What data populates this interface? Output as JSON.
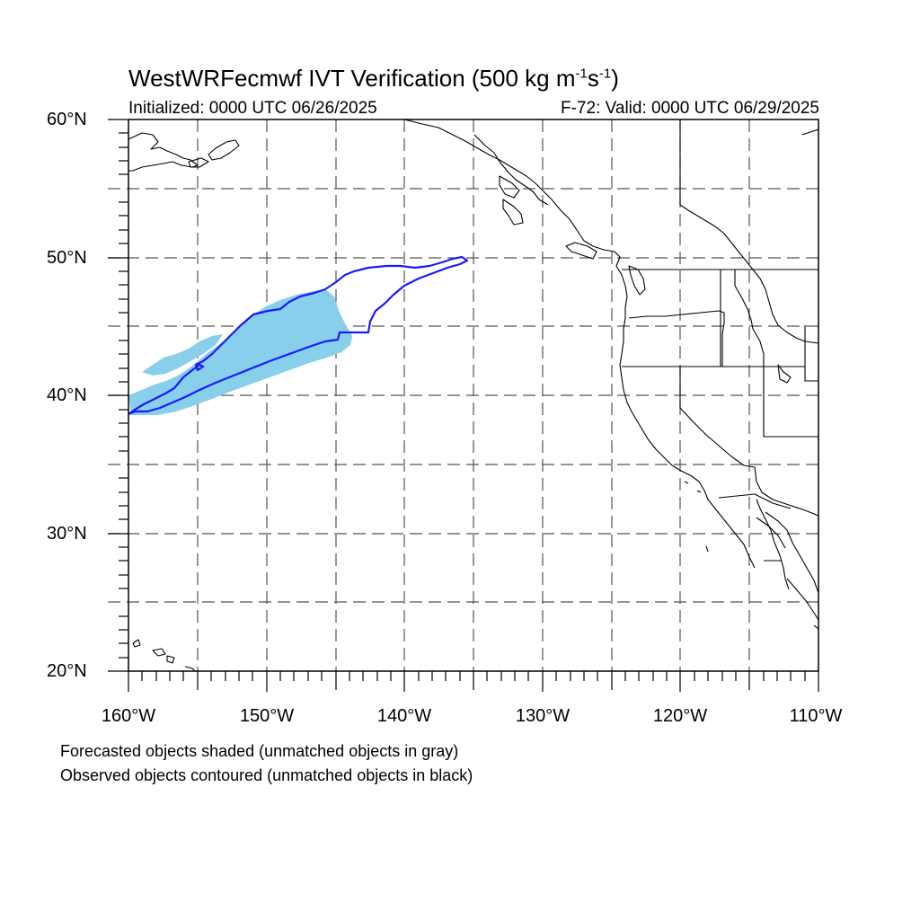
{
  "title": {
    "main": "WestWRFecmwf IVT Verification (500 kg m",
    "exp1": "-1",
    "mid": "s",
    "exp2": "-1",
    "end": ")"
  },
  "initialized": "Initialized: 0000 UTC 06/26/2025",
  "valid": "F-72: Valid: 0000 UTC 06/29/2025",
  "lat_labels": [
    "60°N",
    "50°N",
    "40°N",
    "30°N",
    "20°N"
  ],
  "lon_labels": [
    "160°W",
    "150°W",
    "140°W",
    "130°W",
    "120°W",
    "110°W"
  ],
  "footnotes": [
    "Forecasted objects shaded (unmatched objects in gray)",
    "Observed objects contoured (unmatched objects in black)"
  ],
  "colors": {
    "forecast_fill": "#87cfea",
    "observed_contour": "#1a1aff",
    "coast": "#000000",
    "grid": "#555555"
  },
  "chart_data": {
    "type": "map",
    "lon_range": [
      -160,
      -110
    ],
    "lat_range": [
      20,
      60
    ],
    "grid": "dashed every 5°"
  }
}
